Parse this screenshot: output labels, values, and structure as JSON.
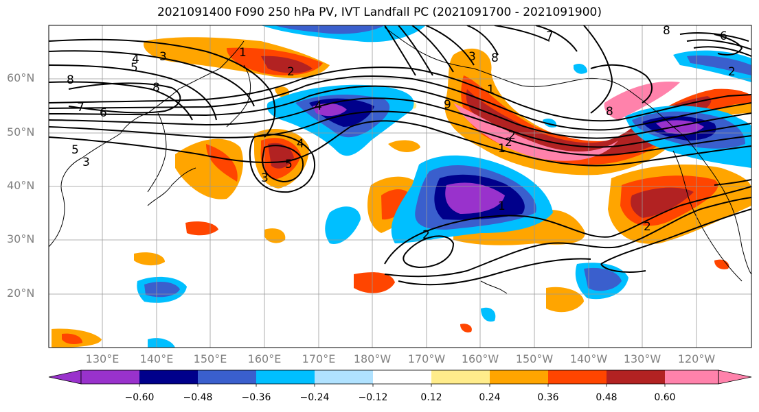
{
  "title": "2021091400 F090 250 hPa PV, IVT Landfall PC (2021091700 - 2021091900)",
  "lat_labels": [
    "60°N",
    "50°N",
    "40°N",
    "30°N",
    "20°N"
  ],
  "lon_labels": [
    "130°E",
    "140°E",
    "150°E",
    "160°E",
    "170°E",
    "180°W",
    "170°W",
    "160°W",
    "150°W",
    "140°W",
    "130°W",
    "120°W"
  ],
  "colorbar": {
    "ticks": [
      "−0.60",
      "−0.48",
      "−0.36",
      "−0.24",
      "−0.12",
      "0.12",
      "0.24",
      "0.36",
      "0.48",
      "0.60"
    ],
    "colors": [
      "#9932CC",
      "#00008B",
      "#3A5FCD",
      "#00BFFF",
      "#B0E2FF",
      "#FFFFFF",
      "#FFEC8B",
      "#FFA500",
      "#FF4500",
      "#B22222",
      "#FF82AB"
    ]
  },
  "contour_labels": [
    "4",
    "5",
    "8",
    "3",
    "1",
    "2",
    "8",
    "6",
    "7",
    "5",
    "3",
    "4",
    "3",
    "4",
    "5",
    "3",
    "8",
    "9",
    "1",
    "2",
    "8",
    "2",
    "1",
    "1",
    "2",
    "2",
    "2",
    "6",
    "8",
    "7"
  ]
}
